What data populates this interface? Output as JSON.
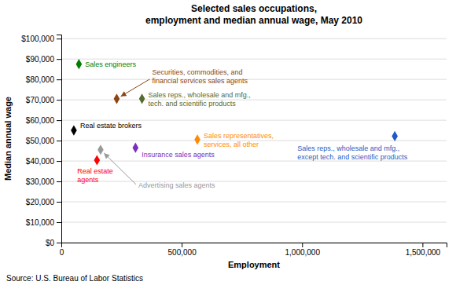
{
  "chart_data": {
    "type": "scatter",
    "title": "Selected sales occupations,\nemployment and median annual wage, May 2010",
    "x_label": "Employment",
    "y_label": "Median annual wage",
    "source": "Source: U.S. Bureau of Labor Statistics",
    "x": [
      73000,
      230000,
      335000,
      52000,
      565000,
      308000,
      148000,
      163000,
      1385000
    ],
    "values": [
      87500,
      70500,
      70500,
      55000,
      50500,
      46500,
      40400,
      45500,
      52200
    ],
    "colors": [
      "#008000",
      "#8B4513",
      "#556B2F",
      "#000000",
      "#FF8C00",
      "#7B2FBE",
      "#FF0000",
      "#999999",
      "#1F5BC4"
    ],
    "annotations": [
      "Sales engineers",
      "Securities, commodities, and\nfinancial services sales agents",
      "Sales reps., wholesale and mfg.,\ntech. and scientific products",
      "Real estate brokers",
      "Sales representatives,\nservices, all other",
      "Insurance sales agents",
      "Real estate\nagents",
      "Advertising sales agents",
      "Sales reps., wholesale and mfg.,\nexcept tech. and scientific products"
    ],
    "marker": "diamond",
    "grid": "y",
    "xlim": [
      0,
      1600000
    ],
    "ylim": [
      0,
      102000
    ],
    "xticks": [
      0,
      {
        "value": 500000,
        "label": "500,000"
      },
      {
        "value": 1000000,
        "label": "1,000,000"
      },
      {
        "value": 1500000,
        "label": "1,500,000"
      }
    ],
    "yticks": [
      {
        "value": 0,
        "label": "$0"
      },
      {
        "value": 10000,
        "label": "$10,000"
      },
      {
        "value": 20000,
        "label": "$20,000"
      },
      {
        "value": 30000,
        "label": "$30,000"
      },
      {
        "value": 40000,
        "label": "$40,000"
      },
      {
        "value": 50000,
        "label": "$50,000"
      },
      {
        "value": 60000,
        "label": "$60,000"
      },
      {
        "value": 70000,
        "label": "$70,000"
      },
      {
        "value": 80000,
        "label": "$80,000"
      },
      {
        "value": 90000,
        "label": "$90,000"
      },
      {
        "value": 100000,
        "label": "$100,000"
      }
    ]
  }
}
